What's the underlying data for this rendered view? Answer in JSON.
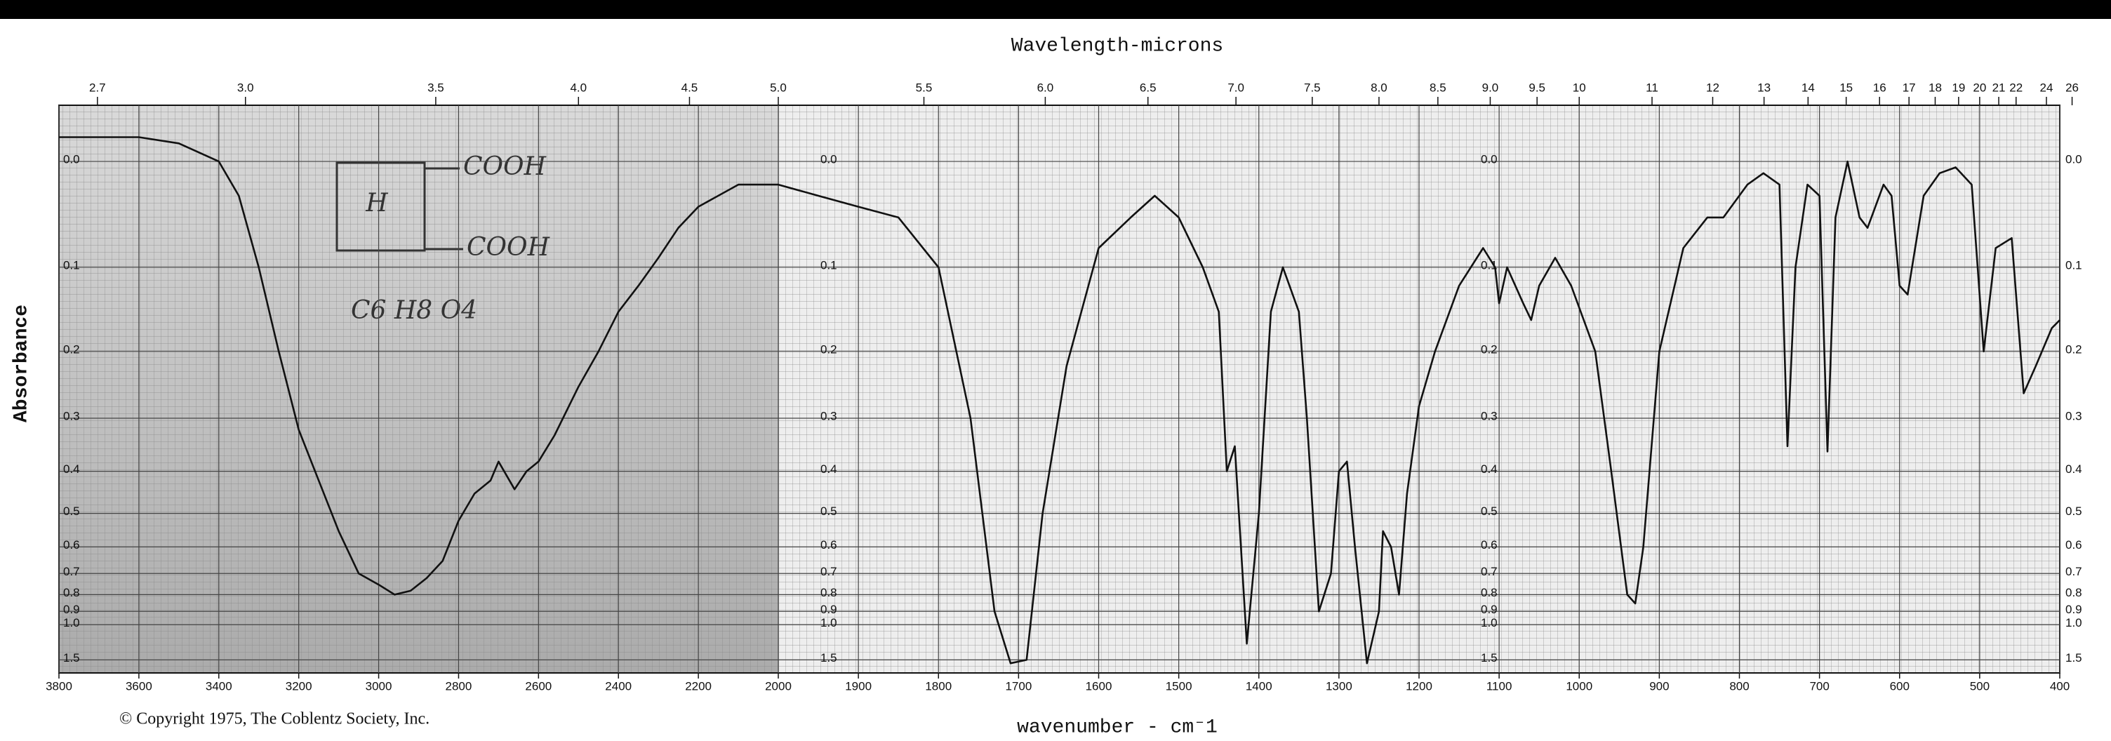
{
  "chart_data": {
    "type": "line",
    "x_top_label": "Wavelength-microns",
    "xlabel": "wavenumber - cm⁻1",
    "ylabel": "Absorbance",
    "copyright": "© Copyright 1975, The Coblentz Society, Inc.",
    "annotations": [
      "COOH",
      "COOH",
      "H",
      "C6 H8 O4"
    ],
    "color": "#111111",
    "grid": true,
    "yscale": "absorbance",
    "xbreak": 2000,
    "xlim": [
      3800,
      400
    ],
    "xticks": [
      3800,
      3600,
      3400,
      3200,
      3000,
      2800,
      2600,
      2400,
      2200,
      2000,
      1900,
      1800,
      1700,
      1600,
      1500,
      1400,
      1300,
      1200,
      1100,
      1000,
      900,
      800,
      700,
      600,
      500,
      400
    ],
    "x2ticks": [
      2.7,
      {
        "value": 3,
        "label": "3.0"
      },
      3.5,
      {
        "value": 4,
        "label": "4.0"
      },
      4.5,
      {
        "value": 5,
        "label": "5.0"
      },
      5.5,
      {
        "value": 6,
        "label": "6.0"
      },
      6.5,
      {
        "value": 7,
        "label": "7.0"
      },
      7.5,
      {
        "value": 8,
        "label": "8.0"
      },
      8.5,
      {
        "value": 9,
        "label": "9.0"
      },
      9.5,
      10,
      11,
      12,
      13,
      14,
      15,
      16,
      17,
      18,
      19,
      20,
      21,
      22,
      24,
      26
    ],
    "ylim": [
      -0.045,
      2.2
    ],
    "yticks": [
      {
        "value": 0,
        "label": "0.0"
      },
      0.1,
      0.2,
      0.3,
      0.4,
      0.5,
      0.6,
      0.7,
      0.8,
      0.9,
      {
        "value": 1,
        "label": "1.0"
      },
      1.5
    ],
    "x": [
      3800,
      3600,
      3500,
      3400,
      3350,
      3300,
      3250,
      3200,
      3150,
      3100,
      3050,
      3000,
      2960,
      2920,
      2880,
      2840,
      2800,
      2760,
      2720,
      2700,
      2660,
      2630,
      2600,
      2560,
      2500,
      2450,
      2400,
      2350,
      2300,
      2250,
      2200,
      2100,
      2000,
      1950,
      1900,
      1850,
      1800,
      1760,
      1730,
      1710,
      1690,
      1670,
      1640,
      1600,
      1560,
      1530,
      1500,
      1470,
      1450,
      1440,
      1430,
      1415,
      1400,
      1385,
      1370,
      1350,
      1340,
      1325,
      1310,
      1300,
      1290,
      1280,
      1265,
      1250,
      1245,
      1235,
      1225,
      1215,
      1200,
      1180,
      1150,
      1120,
      1105,
      1100,
      1090,
      1070,
      1060,
      1050,
      1030,
      1010,
      980,
      960,
      940,
      930,
      920,
      900,
      870,
      840,
      820,
      790,
      770,
      750,
      740,
      730,
      715,
      700,
      690,
      680,
      665,
      650,
      640,
      620,
      610,
      600,
      590,
      570,
      550,
      530,
      510,
      495,
      480,
      460,
      445,
      430,
      410,
      400
    ],
    "values": [
      -0.02,
      -0.02,
      -0.015,
      0.0,
      0.03,
      0.1,
      0.2,
      0.32,
      0.42,
      0.55,
      0.7,
      0.75,
      0.8,
      0.78,
      0.72,
      0.65,
      0.52,
      0.45,
      0.42,
      0.38,
      0.44,
      0.4,
      0.38,
      0.33,
      0.25,
      0.2,
      0.15,
      0.12,
      0.09,
      0.06,
      0.04,
      0.02,
      0.02,
      0.03,
      0.04,
      0.05,
      0.1,
      0.3,
      0.9,
      1.6,
      1.5,
      0.5,
      0.22,
      0.08,
      0.05,
      0.03,
      0.05,
      0.1,
      0.15,
      0.4,
      0.35,
      1.2,
      0.5,
      0.15,
      0.1,
      0.15,
      0.3,
      0.9,
      0.7,
      0.4,
      0.38,
      0.6,
      1.6,
      0.9,
      0.55,
      0.6,
      0.8,
      0.45,
      0.28,
      0.2,
      0.12,
      0.08,
      0.1,
      0.14,
      0.1,
      0.14,
      0.16,
      0.12,
      0.09,
      0.12,
      0.2,
      0.4,
      0.8,
      0.85,
      0.6,
      0.2,
      0.08,
      0.05,
      0.05,
      0.02,
      0.01,
      0.02,
      0.35,
      0.1,
      0.02,
      0.03,
      0.36,
      0.05,
      0.0,
      0.05,
      0.06,
      0.02,
      0.03,
      0.12,
      0.13,
      0.03,
      0.01,
      0.005,
      0.02,
      0.2,
      0.08,
      0.07,
      0.26,
      0.22,
      0.17,
      0.16
    ]
  }
}
